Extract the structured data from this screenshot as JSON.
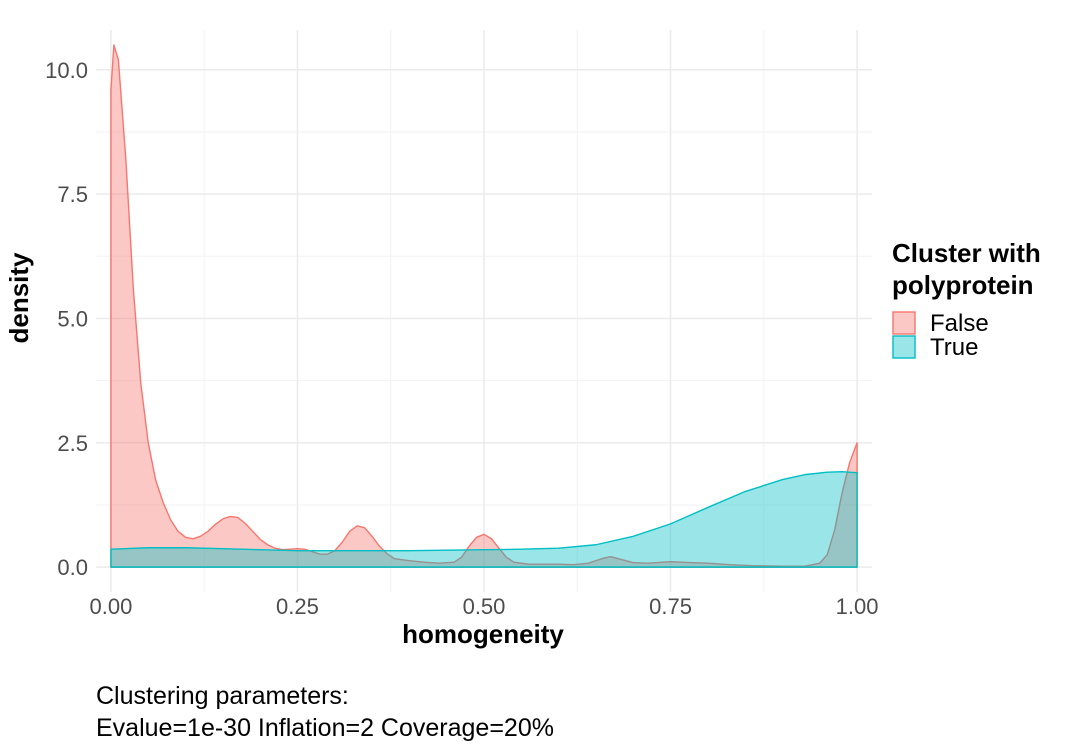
{
  "chart_data": {
    "type": "area",
    "subtype": "density",
    "xlabel": "homogeneity",
    "ylabel": "density",
    "xlim": [
      -0.02,
      1.02
    ],
    "ylim": [
      -0.5,
      10.8
    ],
    "x_ticks": [
      0.0,
      0.25,
      0.5,
      0.75,
      1.0
    ],
    "x_tick_labels": [
      "0.00",
      "0.25",
      "0.50",
      "0.75",
      "1.00"
    ],
    "y_ticks": [
      0.0,
      2.5,
      5.0,
      7.5,
      10.0
    ],
    "y_tick_labels": [
      "0.0",
      "2.5",
      "5.0",
      "7.5",
      "10.0"
    ],
    "grid": true,
    "legend": {
      "title_lines": [
        "Cluster with",
        "polyprotein"
      ],
      "position": "right"
    },
    "series": [
      {
        "name": "False",
        "fill": "#F8766D",
        "points": [
          [
            0.0,
            9.6
          ],
          [
            0.004,
            10.5
          ],
          [
            0.01,
            10.2
          ],
          [
            0.02,
            8.2
          ],
          [
            0.03,
            5.6
          ],
          [
            0.04,
            3.7
          ],
          [
            0.05,
            2.5
          ],
          [
            0.06,
            1.75
          ],
          [
            0.07,
            1.3
          ],
          [
            0.08,
            0.95
          ],
          [
            0.09,
            0.72
          ],
          [
            0.1,
            0.6
          ],
          [
            0.11,
            0.57
          ],
          [
            0.12,
            0.62
          ],
          [
            0.13,
            0.72
          ],
          [
            0.14,
            0.86
          ],
          [
            0.15,
            0.97
          ],
          [
            0.16,
            1.02
          ],
          [
            0.17,
            1.0
          ],
          [
            0.18,
            0.88
          ],
          [
            0.19,
            0.72
          ],
          [
            0.2,
            0.56
          ],
          [
            0.21,
            0.45
          ],
          [
            0.22,
            0.38
          ],
          [
            0.23,
            0.35
          ],
          [
            0.24,
            0.36
          ],
          [
            0.25,
            0.37
          ],
          [
            0.26,
            0.36
          ],
          [
            0.27,
            0.31
          ],
          [
            0.28,
            0.26
          ],
          [
            0.29,
            0.26
          ],
          [
            0.3,
            0.33
          ],
          [
            0.31,
            0.5
          ],
          [
            0.32,
            0.72
          ],
          [
            0.33,
            0.83
          ],
          [
            0.34,
            0.79
          ],
          [
            0.35,
            0.62
          ],
          [
            0.36,
            0.42
          ],
          [
            0.37,
            0.27
          ],
          [
            0.38,
            0.17
          ],
          [
            0.4,
            0.13
          ],
          [
            0.42,
            0.1
          ],
          [
            0.44,
            0.08
          ],
          [
            0.46,
            0.1
          ],
          [
            0.47,
            0.2
          ],
          [
            0.48,
            0.42
          ],
          [
            0.49,
            0.6
          ],
          [
            0.5,
            0.66
          ],
          [
            0.51,
            0.57
          ],
          [
            0.52,
            0.38
          ],
          [
            0.53,
            0.2
          ],
          [
            0.54,
            0.1
          ],
          [
            0.56,
            0.06
          ],
          [
            0.6,
            0.06
          ],
          [
            0.62,
            0.05
          ],
          [
            0.64,
            0.08
          ],
          [
            0.66,
            0.18
          ],
          [
            0.67,
            0.21
          ],
          [
            0.68,
            0.17
          ],
          [
            0.7,
            0.09
          ],
          [
            0.72,
            0.08
          ],
          [
            0.75,
            0.11
          ],
          [
            0.78,
            0.09
          ],
          [
            0.8,
            0.08
          ],
          [
            0.83,
            0.05
          ],
          [
            0.86,
            0.03
          ],
          [
            0.9,
            0.02
          ],
          [
            0.93,
            0.02
          ],
          [
            0.95,
            0.08
          ],
          [
            0.96,
            0.25
          ],
          [
            0.97,
            0.75
          ],
          [
            0.98,
            1.5
          ],
          [
            0.99,
            2.1
          ],
          [
            1.0,
            2.5
          ]
        ]
      },
      {
        "name": "True",
        "fill": "#00BFC4",
        "points": [
          [
            0.0,
            0.36
          ],
          [
            0.05,
            0.39
          ],
          [
            0.1,
            0.39
          ],
          [
            0.15,
            0.37
          ],
          [
            0.2,
            0.35
          ],
          [
            0.25,
            0.33
          ],
          [
            0.3,
            0.33
          ],
          [
            0.35,
            0.33
          ],
          [
            0.4,
            0.33
          ],
          [
            0.45,
            0.34
          ],
          [
            0.5,
            0.35
          ],
          [
            0.55,
            0.36
          ],
          [
            0.6,
            0.38
          ],
          [
            0.65,
            0.45
          ],
          [
            0.7,
            0.62
          ],
          [
            0.75,
            0.87
          ],
          [
            0.8,
            1.2
          ],
          [
            0.85,
            1.52
          ],
          [
            0.9,
            1.76
          ],
          [
            0.93,
            1.86
          ],
          [
            0.96,
            1.91
          ],
          [
            0.98,
            1.92
          ],
          [
            1.0,
            1.9
          ]
        ]
      }
    ]
  },
  "caption": {
    "line1": "Clustering parameters:",
    "line2": "Evalue=1e-30 Inflation=2 Coverage=20%"
  }
}
